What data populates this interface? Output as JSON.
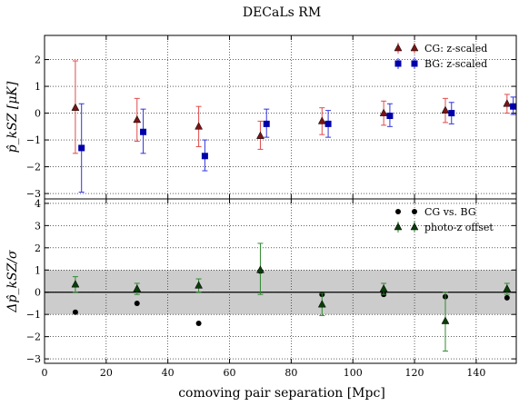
{
  "chart_data": {
    "type": "scatter",
    "title": "DECaLs RM",
    "xlabel": "comoving pair separation [Mpc]",
    "xlim": [
      0,
      153
    ],
    "x_ticks": [
      "0",
      "20",
      "40",
      "60",
      "80",
      "100",
      "120",
      "140"
    ],
    "grid": true,
    "panels": [
      {
        "id": "top",
        "ylabel": "p̂_kSZ [μK]",
        "ylim": [
          -3.2,
          2.9
        ],
        "y_ticks": [
          "−3",
          "−2",
          "−1",
          "0",
          "1",
          "2"
        ],
        "legend_position": "top-right",
        "series": [
          {
            "name": "CG: z-scaled",
            "color": "#e04b4b",
            "marker_color": "#7a1414",
            "marker": "triangle",
            "points": [
              {
                "x": 10,
                "y": 0.2,
                "lo": -1.5,
                "hi": 1.95
              },
              {
                "x": 30,
                "y": -0.25,
                "lo": -1.05,
                "hi": 0.55
              },
              {
                "x": 50,
                "y": -0.5,
                "lo": -1.25,
                "hi": 0.25
              },
              {
                "x": 70,
                "y": -0.85,
                "lo": -1.35,
                "hi": -0.3
              },
              {
                "x": 90,
                "y": -0.3,
                "lo": -0.8,
                "hi": 0.2
              },
              {
                "x": 110,
                "y": 0.0,
                "lo": -0.45,
                "hi": 0.45
              },
              {
                "x": 130,
                "y": 0.1,
                "lo": -0.35,
                "hi": 0.55
              },
              {
                "x": 150,
                "y": 0.35,
                "lo": 0.0,
                "hi": 0.7
              }
            ]
          },
          {
            "name": "BG: z-scaled",
            "color": "#3333dd",
            "marker_color": "#0000aa",
            "marker": "square",
            "points": [
              {
                "x": 12,
                "y": -1.3,
                "lo": -2.95,
                "hi": 0.35
              },
              {
                "x": 32,
                "y": -0.7,
                "lo": -1.5,
                "hi": 0.15
              },
              {
                "x": 52,
                "y": -1.6,
                "lo": -2.15,
                "hi": -1.0
              },
              {
                "x": 72,
                "y": -0.4,
                "lo": -0.9,
                "hi": 0.15
              },
              {
                "x": 92,
                "y": -0.4,
                "lo": -0.9,
                "hi": 0.1
              },
              {
                "x": 112,
                "y": -0.1,
                "lo": -0.5,
                "hi": 0.35
              },
              {
                "x": 132,
                "y": 0.0,
                "lo": -0.4,
                "hi": 0.4
              },
              {
                "x": 152,
                "y": 0.25,
                "lo": -0.05,
                "hi": 0.6
              }
            ]
          }
        ]
      },
      {
        "id": "bottom",
        "ylabel": "Δp̂_kSZ/σ",
        "ylim": [
          -3.2,
          4.2
        ],
        "y_ticks": [
          "−3",
          "−2",
          "−1",
          "0",
          "1",
          "2",
          "3",
          "4"
        ],
        "band": [
          -1,
          1
        ],
        "band_color": "#cccccc",
        "legend_position": "top-right",
        "series": [
          {
            "name": "CG vs. BG",
            "color": "#000000",
            "marker_color": "#000000",
            "marker": "circle",
            "points": [
              {
                "x": 10,
                "y": -0.9
              },
              {
                "x": 30,
                "y": -0.5
              },
              {
                "x": 50,
                "y": -1.4
              },
              {
                "x": 70,
                "y": 0.95
              },
              {
                "x": 90,
                "y": -0.1
              },
              {
                "x": 110,
                "y": -0.1
              },
              {
                "x": 130,
                "y": -0.2
              },
              {
                "x": 150,
                "y": -0.25
              }
            ]
          },
          {
            "name": "photo-z offset",
            "color": "#2e8b2e",
            "marker_color": "#0a3d0a",
            "marker": "triangle",
            "points": [
              {
                "x": 10,
                "y": 0.35,
                "lo": 0.0,
                "hi": 0.7
              },
              {
                "x": 30,
                "y": 0.15,
                "lo": -0.1,
                "hi": 0.4
              },
              {
                "x": 50,
                "y": 0.3,
                "lo": 0.0,
                "hi": 0.6
              },
              {
                "x": 70,
                "y": 1.0,
                "lo": -0.1,
                "hi": 2.2
              },
              {
                "x": 90,
                "y": -0.55,
                "lo": -1.05,
                "hi": -0.05
              },
              {
                "x": 110,
                "y": 0.15,
                "lo": -0.1,
                "hi": 0.4
              },
              {
                "x": 130,
                "y": -1.3,
                "lo": -2.65,
                "hi": 0.0
              },
              {
                "x": 150,
                "y": 0.15,
                "lo": -0.1,
                "hi": 0.4
              }
            ]
          }
        ]
      }
    ]
  }
}
